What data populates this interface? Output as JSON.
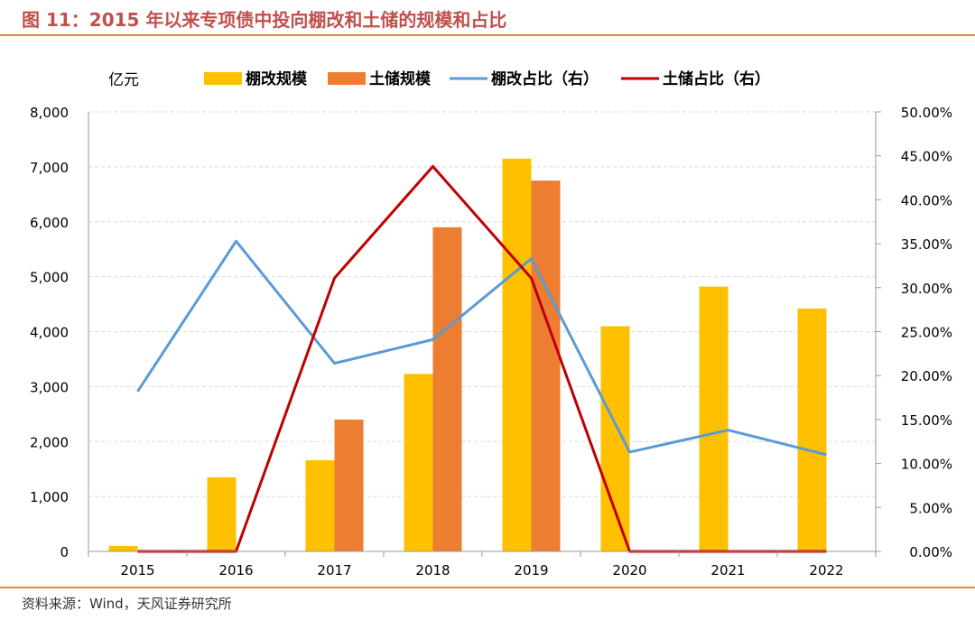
{
  "header": {
    "title": "图 11：2015 年以来专项债中投向棚改和土储的规模和占比"
  },
  "footer": {
    "source": "资料来源：Wind，天风证券研究所"
  },
  "chart_data": {
    "type": "bar",
    "categories": [
      "2015",
      "2016",
      "2017",
      "2018",
      "2019",
      "2020",
      "2021",
      "2022"
    ],
    "y_unit_label": "亿元",
    "ylim": [
      0,
      8000
    ],
    "y2lim": [
      0,
      50
    ],
    "yticks": [
      "0",
      "1,000",
      "2,000",
      "3,000",
      "4,000",
      "5,000",
      "6,000",
      "7,000",
      "8,000"
    ],
    "y2ticks": [
      "0.00%",
      "5.00%",
      "10.00%",
      "15.00%",
      "20.00%",
      "25.00%",
      "30.00%",
      "35.00%",
      "40.00%",
      "45.00%",
      "50.00%"
    ],
    "grid": true,
    "legend_position": "top",
    "series": [
      {
        "name": "棚改规模",
        "kind": "bar",
        "axis": "left",
        "color": "#ffc000",
        "values": [
          100,
          1350,
          1660,
          3230,
          7150,
          4100,
          4820,
          4420
        ]
      },
      {
        "name": "土储规模",
        "kind": "bar",
        "axis": "left",
        "color": "#ed7d31",
        "values": [
          null,
          null,
          2400,
          5900,
          6750,
          null,
          null,
          null
        ]
      },
      {
        "name": "棚改占比（右）",
        "kind": "line",
        "axis": "right",
        "color": "#5b9bd5",
        "values": [
          18.2,
          35.3,
          21.4,
          24.1,
          33.3,
          11.3,
          13.8,
          11.0
        ]
      },
      {
        "name": "土储占比（右）",
        "kind": "line",
        "axis": "right",
        "color": "#c00000",
        "values": [
          0,
          0,
          31.1,
          43.8,
          31.1,
          0,
          0,
          0
        ]
      }
    ]
  }
}
